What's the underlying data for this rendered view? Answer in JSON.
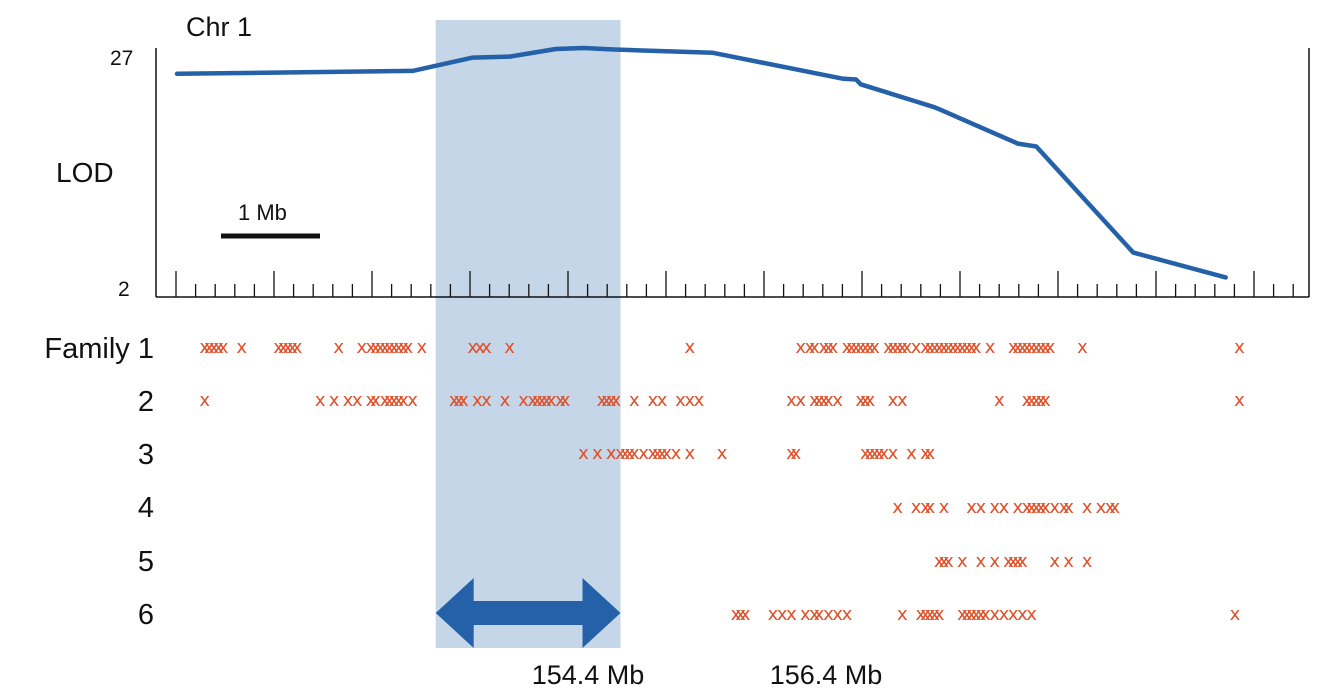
{
  "chart_data": {
    "type": "line",
    "title": "Chr 1",
    "ylabel": "LOD",
    "yticks": [
      "27",
      "2"
    ],
    "ylim": [
      2,
      27
    ],
    "xlim_mb": [
      151.6,
      163.3
    ],
    "scale_bar_label": "1 Mb",
    "highlight": {
      "start_mb": 154.4,
      "end_mb": 156.4,
      "start_label": "154.4 Mb",
      "end_label": "156.4 Mb"
    },
    "series": [
      {
        "color": "#2461a8",
        "x": [
          151.6,
          154.15,
          154.8,
          155.2,
          155.7,
          156.0,
          156.3,
          157.4,
          158.8,
          158.95,
          159.0,
          159.6,
          159.8,
          159.85,
          160.7,
          160.9,
          161.95,
          162.95
        ],
        "y": [
          24.3,
          24.6,
          26.0,
          26.1,
          26.9,
          27.0,
          26.85,
          26.5,
          23.8,
          23.7,
          23.2,
          21.4,
          20.8,
          20.6,
          17.0,
          16.7,
          5.6,
          3.0
        ]
      }
    ],
    "family_labels": [
      "Family 1",
      "2",
      "3",
      "4",
      "5",
      "6"
    ],
    "marker_symbol": "x",
    "marker_color": "#e04f28",
    "families": [
      {
        "label": "Family 1",
        "markers_mb": [
          151.9,
          151.95,
          152.0,
          152.05,
          152.1,
          152.3,
          152.7,
          152.75,
          152.8,
          152.85,
          152.9,
          153.35,
          153.6,
          153.7,
          153.75,
          153.8,
          153.85,
          153.9,
          153.95,
          154.0,
          154.05,
          154.1,
          154.25,
          154.8,
          154.88,
          154.95,
          155.2,
          157.15,
          158.35,
          158.45,
          158.5,
          158.6,
          158.65,
          158.7,
          158.85,
          158.9,
          158.95,
          159.0,
          159.05,
          159.1,
          159.15,
          159.3,
          159.35,
          159.4,
          159.45,
          159.5,
          159.6,
          159.7,
          159.75,
          159.8,
          159.85,
          159.9,
          159.95,
          160.0,
          160.05,
          160.1,
          160.15,
          160.2,
          160.25,
          160.4,
          160.65,
          160.7,
          160.75,
          160.8,
          160.85,
          160.9,
          160.95,
          161.0,
          161.05,
          161.4,
          163.1
        ]
      },
      {
        "label": "2",
        "markers_mb": [
          151.9,
          153.15,
          153.3,
          153.45,
          153.55,
          153.7,
          153.75,
          153.85,
          153.9,
          153.95,
          154.0,
          154.05,
          154.15,
          154.6,
          154.65,
          154.7,
          154.85,
          154.95,
          155.15,
          155.35,
          155.45,
          155.5,
          155.55,
          155.6,
          155.65,
          155.75,
          155.8,
          156.2,
          156.25,
          156.3,
          156.35,
          156.55,
          156.75,
          156.85,
          157.05,
          157.15,
          157.25,
          158.25,
          158.35,
          158.5,
          158.55,
          158.6,
          158.65,
          158.75,
          159.0,
          159.05,
          159.1,
          159.35,
          159.45,
          160.5,
          160.8,
          160.85,
          160.9,
          160.95,
          161.0,
          163.1
        ]
      },
      {
        "label": "3",
        "markers_mb": [
          156.0,
          156.15,
          156.3,
          156.4,
          156.45,
          156.5,
          156.55,
          156.65,
          156.75,
          156.8,
          156.85,
          156.9,
          157.0,
          157.15,
          157.5,
          158.25,
          158.3,
          159.05,
          159.1,
          159.15,
          159.2,
          159.25,
          159.35,
          159.55,
          159.7,
          159.75
        ]
      },
      {
        "label": "4",
        "markers_mb": [
          159.4,
          159.6,
          159.7,
          159.75,
          159.9,
          160.2,
          160.3,
          160.45,
          160.55,
          160.7,
          160.8,
          160.85,
          160.9,
          160.95,
          161.0,
          161.1,
          161.2,
          161.25,
          161.45,
          161.6,
          161.7,
          161.75
        ]
      },
      {
        "label": "5",
        "markers_mb": [
          159.85,
          159.9,
          159.95,
          160.1,
          160.3,
          160.45,
          160.6,
          160.65,
          160.7,
          160.75,
          161.1,
          161.25,
          161.45
        ]
      },
      {
        "label": "6",
        "markers_mb": [
          157.65,
          157.7,
          157.75,
          158.05,
          158.15,
          158.25,
          158.4,
          158.5,
          158.55,
          158.65,
          158.75,
          158.85,
          159.45,
          159.65,
          159.7,
          159.75,
          159.8,
          159.85,
          160.1,
          160.15,
          160.2,
          160.25,
          160.3,
          160.35,
          160.45,
          160.55,
          160.65,
          160.75,
          160.85,
          163.05
        ]
      }
    ]
  }
}
